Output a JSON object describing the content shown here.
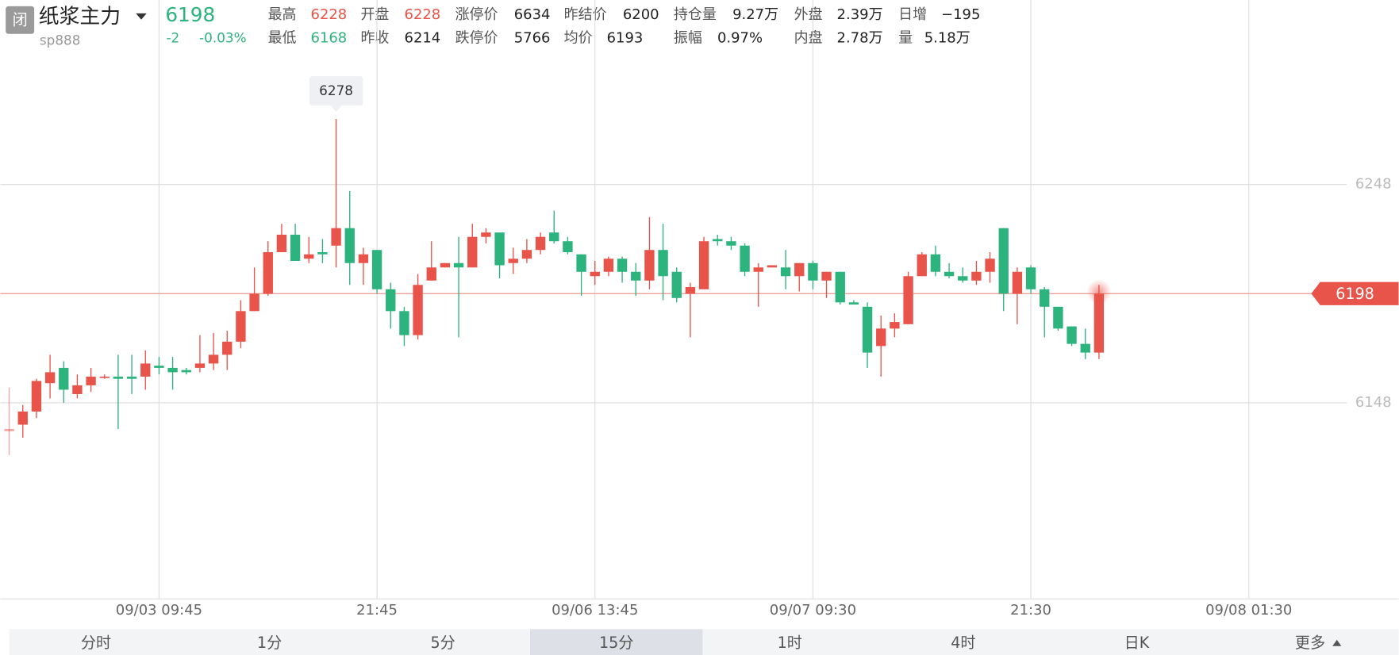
{
  "header": {
    "badge": "闭",
    "name": "纸浆主力",
    "code": "sp888",
    "price": "6198",
    "change": "-2",
    "change_pct": "-0.03%",
    "stats": [
      [
        {
          "label": "最高",
          "value": "6228",
          "color": "#e8534a"
        },
        {
          "label": "开盘",
          "value": "6228",
          "color": "#e8534a"
        },
        {
          "label": "涨停价",
          "value": "6634"
        },
        {
          "label": "昨结价",
          "value": "6200"
        },
        {
          "label": "持仓量",
          "value": "9.27万"
        },
        {
          "label": "外盘",
          "value": "2.39万"
        },
        {
          "label": "日增",
          "value": "−195"
        }
      ],
      [
        {
          "label": "最低",
          "value": "6168",
          "color": "#2db37d"
        },
        {
          "label": "昨收",
          "value": "6214"
        },
        {
          "label": "跌停价",
          "value": "5766"
        },
        {
          "label": "均价",
          "value": "6193"
        },
        {
          "label": "振幅",
          "value": "0.97%"
        },
        {
          "label": "内盘",
          "value": "2.78万"
        },
        {
          "label": "量",
          "value": "5.18万"
        }
      ]
    ]
  },
  "chart_data": {
    "type": "candlestick",
    "up_color": "#e8534a",
    "down_color": "#2db37d",
    "open": [
      6135,
      6138,
      6144,
      6157,
      6164,
      6152,
      6156,
      6160,
      6160,
      6160,
      6160,
      6165,
      6164,
      6163,
      6164,
      6166,
      6170,
      6176,
      6190,
      6198,
      6217,
      6225,
      6214,
      6217,
      6220,
      6228,
      6212,
      6218,
      6200,
      6190,
      6179,
      6204,
      6210,
      6212,
      6210,
      6224,
      6226,
      6212,
      6214,
      6218,
      6226,
      6222,
      6216,
      6206,
      6208,
      6214,
      6208,
      6204,
      6218,
      6208,
      6198,
      6200,
      6223,
      6222,
      6220,
      6208,
      6210,
      6210,
      6206,
      6212,
      6204,
      6208,
      6194,
      6192,
      6174,
      6182,
      6184,
      6206,
      6216,
      6208,
      6206,
      6204,
      6208,
      6228,
      6198,
      6210,
      6200,
      6192,
      6183,
      6175,
      6171
    ],
    "high": [
      6155,
      6147,
      6159,
      6170,
      6167,
      6161,
      6164,
      6161,
      6170,
      6170,
      6172,
      6169,
      6169,
      6164,
      6179,
      6180,
      6181,
      6195,
      6210,
      6222,
      6230,
      6230,
      6224,
      6223,
      6278,
      6245,
      6219,
      6218,
      6203,
      6192,
      6207,
      6222,
      6212,
      6224,
      6230,
      6228,
      6226,
      6219,
      6223,
      6226,
      6236,
      6224,
      6216,
      6213,
      6215,
      6215,
      6212,
      6233,
      6230,
      6210,
      6203,
      6224,
      6225,
      6224,
      6221,
      6212,
      6211,
      6218,
      6212,
      6213,
      6208,
      6208,
      6195,
      6194,
      6188,
      6189,
      6208,
      6217,
      6220,
      6212,
      6210,
      6213,
      6217,
      6228,
      6210,
      6211,
      6201,
      6192,
      6183,
      6182,
      6202
    ],
    "low": [
      6124,
      6132,
      6141,
      6150,
      6148,
      6150,
      6153,
      6159,
      6136,
      6152,
      6154,
      6161,
      6154,
      6161,
      6162,
      6163,
      6163,
      6173,
      6190,
      6197,
      6217,
      6213,
      6212,
      6212,
      6210,
      6202,
      6202,
      6198,
      6182,
      6174,
      6177,
      6204,
      6210,
      6178,
      6210,
      6221,
      6205,
      6207,
      6212,
      6216,
      6221,
      6216,
      6197,
      6202,
      6206,
      6203,
      6197,
      6200,
      6195,
      6194,
      6178,
      6200,
      6220,
      6218,
      6206,
      6192,
      6210,
      6200,
      6199,
      6200,
      6196,
      6193,
      6193,
      6164,
      6160,
      6178,
      6184,
      6206,
      6206,
      6205,
      6203,
      6202,
      6203,
      6190,
      6184,
      6198,
      6178,
      6181,
      6174,
      6168,
      6168
    ],
    "close": [
      6136,
      6144,
      6158,
      6162,
      6154,
      6156,
      6160,
      6160,
      6159,
      6159,
      6166,
      6164,
      6162,
      6162,
      6166,
      6170,
      6176,
      6190,
      6198,
      6217,
      6225,
      6213,
      6216,
      6216,
      6228,
      6212,
      6216,
      6200,
      6190,
      6179,
      6202,
      6210,
      6212,
      6210,
      6224,
      6226,
      6211,
      6214,
      6218,
      6224,
      6222,
      6217,
      6208,
      6208,
      6214,
      6208,
      6204,
      6218,
      6206,
      6196,
      6201,
      6222,
      6222,
      6220,
      6208,
      6210,
      6211,
      6206,
      6212,
      6204,
      6208,
      6194,
      6193,
      6171,
      6182,
      6185,
      6206,
      6216,
      6208,
      6206,
      6204,
      6208,
      6214,
      6198,
      6208,
      6200,
      6192,
      6182,
      6175,
      6171,
      6198
    ],
    "last_price": 6198,
    "ylim": [
      6058,
      6308
    ],
    "yticks": [
      6148,
      6248
    ],
    "xlim": [
      -0.65,
      102
    ],
    "xticks": [
      {
        "value": 11,
        "label": "09/03 09:45"
      },
      {
        "value": 27,
        "label": "21:45"
      },
      {
        "value": 43,
        "label": "09/06 13:45"
      },
      {
        "value": 59,
        "label": "09/07 09:30"
      },
      {
        "value": 75,
        "label": "21:30"
      },
      {
        "value": 91,
        "label": "09/08 01:30"
      }
    ],
    "grid": true
  },
  "tabs": [
    {
      "label": "分时"
    },
    {
      "label": "1分"
    },
    {
      "label": "5分"
    },
    {
      "label": "15分",
      "selected": true
    },
    {
      "label": "1时"
    },
    {
      "label": "4时"
    },
    {
      "label": "日K"
    },
    {
      "label": "更多"
    }
  ]
}
